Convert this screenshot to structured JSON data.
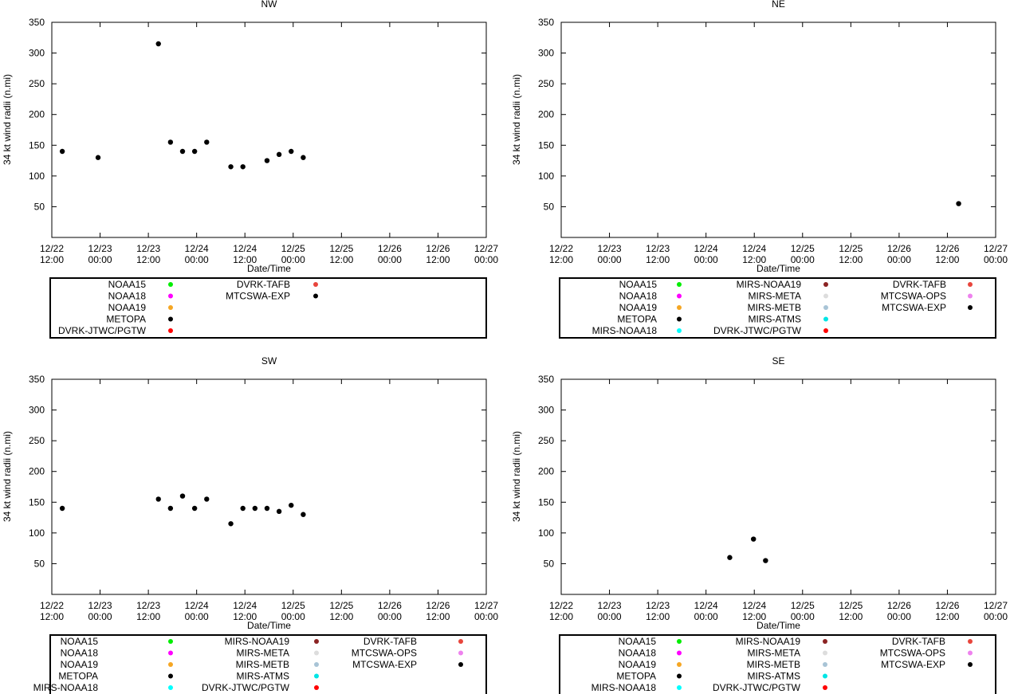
{
  "chart_data": [
    {
      "type": "scatter",
      "title": "NW",
      "xlabel": "Date/Time",
      "ylabel": "34 kt wind radii (n.mi)",
      "ylim": [
        0,
        350
      ],
      "yticks": [
        50,
        100,
        150,
        200,
        250,
        300,
        350
      ],
      "xlim_hours": [
        0,
        108
      ],
      "xticks": [
        {
          "line1": "12/22",
          "line2": "12:00"
        },
        {
          "line1": "12/23",
          "line2": "00:00"
        },
        {
          "line1": "12/23",
          "line2": "12:00"
        },
        {
          "line1": "12/24",
          "line2": "00:00"
        },
        {
          "line1": "12/24",
          "line2": "12:00"
        },
        {
          "line1": "12/25",
          "line2": "00:00"
        },
        {
          "line1": "12/25",
          "line2": "12:00"
        },
        {
          "line1": "12/26",
          "line2": "00:00"
        },
        {
          "line1": "12/26",
          "line2": "12:00"
        },
        {
          "line1": "12/27",
          "line2": "00:00"
        }
      ],
      "series": [
        {
          "name": "MTCSWA-EXP",
          "color": "#000000",
          "points": [
            {
              "x": 2.6,
              "y": 140
            },
            {
              "x": 11.5,
              "y": 130
            },
            {
              "x": 26.5,
              "y": 315
            },
            {
              "x": 29.5,
              "y": 155
            },
            {
              "x": 32.5,
              "y": 140
            },
            {
              "x": 35.5,
              "y": 140
            },
            {
              "x": 38.5,
              "y": 155
            },
            {
              "x": 44.5,
              "y": 115
            },
            {
              "x": 47.5,
              "y": 115
            },
            {
              "x": 53.5,
              "y": 125
            },
            {
              "x": 56.5,
              "y": 135
            },
            {
              "x": 59.5,
              "y": 140
            },
            {
              "x": 62.5,
              "y": 130
            }
          ]
        }
      ],
      "legend": {
        "columns": [
          [
            {
              "label": "NOAA15",
              "color": "#00ee00"
            },
            {
              "label": "NOAA18",
              "color": "#ff00ff"
            },
            {
              "label": "NOAA19",
              "color": "#f5a623"
            },
            {
              "label": "METOPA",
              "color": "#000000"
            },
            {
              "label": "DVRK-JTWC/PGTW",
              "color": "#ff0000"
            }
          ],
          [
            {
              "label": "DVRK-TAFB",
              "color": "#e8453c"
            },
            {
              "label": "MTCSWA-EXP",
              "color": "#000000"
            }
          ]
        ]
      }
    },
    {
      "type": "scatter",
      "title": "NE",
      "xlabel": "Date/Time",
      "ylabel": "34 kt wind radii (n.mi)",
      "ylim": [
        0,
        350
      ],
      "yticks": [
        50,
        100,
        150,
        200,
        250,
        300,
        350
      ],
      "xlim_hours": [
        0,
        108
      ],
      "xticks": [
        {
          "line1": "12/22",
          "line2": "12:00"
        },
        {
          "line1": "12/23",
          "line2": "00:00"
        },
        {
          "line1": "12/23",
          "line2": "12:00"
        },
        {
          "line1": "12/24",
          "line2": "00:00"
        },
        {
          "line1": "12/24",
          "line2": "12:00"
        },
        {
          "line1": "12/25",
          "line2": "00:00"
        },
        {
          "line1": "12/25",
          "line2": "12:00"
        },
        {
          "line1": "12/26",
          "line2": "00:00"
        },
        {
          "line1": "12/26",
          "line2": "12:00"
        },
        {
          "line1": "12/27",
          "line2": "00:00"
        }
      ],
      "series": [
        {
          "name": "MTCSWA-EXP",
          "color": "#000000",
          "points": [
            {
              "x": 98.8,
              "y": 55
            }
          ]
        }
      ],
      "legend": {
        "columns": [
          [
            {
              "label": "NOAA15",
              "color": "#00ee00"
            },
            {
              "label": "NOAA18",
              "color": "#ff00ff"
            },
            {
              "label": "NOAA19",
              "color": "#f5a623"
            },
            {
              "label": "METOPA",
              "color": "#000000"
            },
            {
              "label": "MIRS-NOAA18",
              "color": "#00ffff"
            }
          ],
          [
            {
              "label": "MIRS-NOAA19",
              "color": "#8b2323"
            },
            {
              "label": "MIRS-META",
              "color": "#dddddd"
            },
            {
              "label": "MIRS-METB",
              "color": "#a8c4d6"
            },
            {
              "label": "MIRS-ATMS",
              "color": "#00e5e5"
            },
            {
              "label": "DVRK-JTWC/PGTW",
              "color": "#ff0000"
            }
          ],
          [
            {
              "label": "DVRK-TAFB",
              "color": "#e8453c"
            },
            {
              "label": "MTCSWA-OPS",
              "color": "#ee82ee"
            },
            {
              "label": "MTCSWA-EXP",
              "color": "#000000"
            }
          ]
        ]
      }
    },
    {
      "type": "scatter",
      "title": "SW",
      "xlabel": "Date/Time",
      "ylabel": "34 kt wind radii (n.mi)",
      "ylim": [
        0,
        350
      ],
      "yticks": [
        50,
        100,
        150,
        200,
        250,
        300,
        350
      ],
      "xlim_hours": [
        0,
        108
      ],
      "xticks": [
        {
          "line1": "12/22",
          "line2": "12:00"
        },
        {
          "line1": "12/23",
          "line2": "00:00"
        },
        {
          "line1": "12/23",
          "line2": "12:00"
        },
        {
          "line1": "12/24",
          "line2": "00:00"
        },
        {
          "line1": "12/24",
          "line2": "12:00"
        },
        {
          "line1": "12/25",
          "line2": "00:00"
        },
        {
          "line1": "12/25",
          "line2": "12:00"
        },
        {
          "line1": "12/26",
          "line2": "00:00"
        },
        {
          "line1": "12/26",
          "line2": "12:00"
        },
        {
          "line1": "12/27",
          "line2": "00:00"
        }
      ],
      "series": [
        {
          "name": "MTCSWA-EXP",
          "color": "#000000",
          "points": [
            {
              "x": 2.6,
              "y": 140
            },
            {
              "x": 26.5,
              "y": 155
            },
            {
              "x": 29.5,
              "y": 140
            },
            {
              "x": 32.5,
              "y": 160
            },
            {
              "x": 35.5,
              "y": 140
            },
            {
              "x": 38.5,
              "y": 155
            },
            {
              "x": 44.5,
              "y": 115
            },
            {
              "x": 47.5,
              "y": 140
            },
            {
              "x": 50.5,
              "y": 140
            },
            {
              "x": 53.5,
              "y": 140
            },
            {
              "x": 56.5,
              "y": 135
            },
            {
              "x": 59.5,
              "y": 145
            },
            {
              "x": 62.5,
              "y": 130
            }
          ]
        }
      ],
      "legend": {
        "columns": [
          [
            {
              "label": "NOAA15",
              "color": "#00ee00"
            },
            {
              "label": "NOAA18",
              "color": "#ff00ff"
            },
            {
              "label": "NOAA19",
              "color": "#f5a623"
            },
            {
              "label": "METOPA",
              "color": "#000000"
            },
            {
              "label": "MIRS-NOAA18",
              "color": "#00ffff"
            }
          ],
          [
            {
              "label": "MIRS-NOAA19",
              "color": "#8b2323"
            },
            {
              "label": "MIRS-META",
              "color": "#dddddd"
            },
            {
              "label": "MIRS-METB",
              "color": "#a8c4d6"
            },
            {
              "label": "MIRS-ATMS",
              "color": "#00e5e5"
            },
            {
              "label": "DVRK-JTWC/PGTW",
              "color": "#ff0000"
            }
          ],
          [
            {
              "label": "DVRK-TAFB",
              "color": "#e8453c"
            },
            {
              "label": "MTCSWA-OPS",
              "color": "#ee82ee"
            },
            {
              "label": "MTCSWA-EXP",
              "color": "#000000"
            }
          ]
        ]
      }
    },
    {
      "type": "scatter",
      "title": "SE",
      "xlabel": "Date/Time",
      "ylabel": "34 kt wind radii (n.mi)",
      "ylim": [
        0,
        350
      ],
      "yticks": [
        50,
        100,
        150,
        200,
        250,
        300,
        350
      ],
      "xlim_hours": [
        0,
        108
      ],
      "xticks": [
        {
          "line1": "12/22",
          "line2": "12:00"
        },
        {
          "line1": "12/23",
          "line2": "00:00"
        },
        {
          "line1": "12/23",
          "line2": "12:00"
        },
        {
          "line1": "12/24",
          "line2": "00:00"
        },
        {
          "line1": "12/24",
          "line2": "12:00"
        },
        {
          "line1": "12/25",
          "line2": "00:00"
        },
        {
          "line1": "12/25",
          "line2": "12:00"
        },
        {
          "line1": "12/26",
          "line2": "00:00"
        },
        {
          "line1": "12/26",
          "line2": "12:00"
        },
        {
          "line1": "12/27",
          "line2": "00:00"
        }
      ],
      "series": [
        {
          "name": "MTCSWA-EXP",
          "color": "#000000",
          "points": [
            {
              "x": 41.9,
              "y": 60
            },
            {
              "x": 47.8,
              "y": 90
            },
            {
              "x": 50.8,
              "y": 55
            }
          ]
        }
      ],
      "legend": {
        "columns": [
          [
            {
              "label": "NOAA15",
              "color": "#00ee00"
            },
            {
              "label": "NOAA18",
              "color": "#ff00ff"
            },
            {
              "label": "NOAA19",
              "color": "#f5a623"
            },
            {
              "label": "METOPA",
              "color": "#000000"
            },
            {
              "label": "MIRS-NOAA18",
              "color": "#00ffff"
            }
          ],
          [
            {
              "label": "MIRS-NOAA19",
              "color": "#8b2323"
            },
            {
              "label": "MIRS-META",
              "color": "#dddddd"
            },
            {
              "label": "MIRS-METB",
              "color": "#a8c4d6"
            },
            {
              "label": "MIRS-ATMS",
              "color": "#00e5e5"
            },
            {
              "label": "DVRK-JTWC/PGTW",
              "color": "#ff0000"
            }
          ],
          [
            {
              "label": "DVRK-TAFB",
              "color": "#e8453c"
            },
            {
              "label": "MTCSWA-OPS",
              "color": "#ee82ee"
            },
            {
              "label": "MTCSWA-EXP",
              "color": "#000000"
            }
          ]
        ]
      }
    }
  ]
}
